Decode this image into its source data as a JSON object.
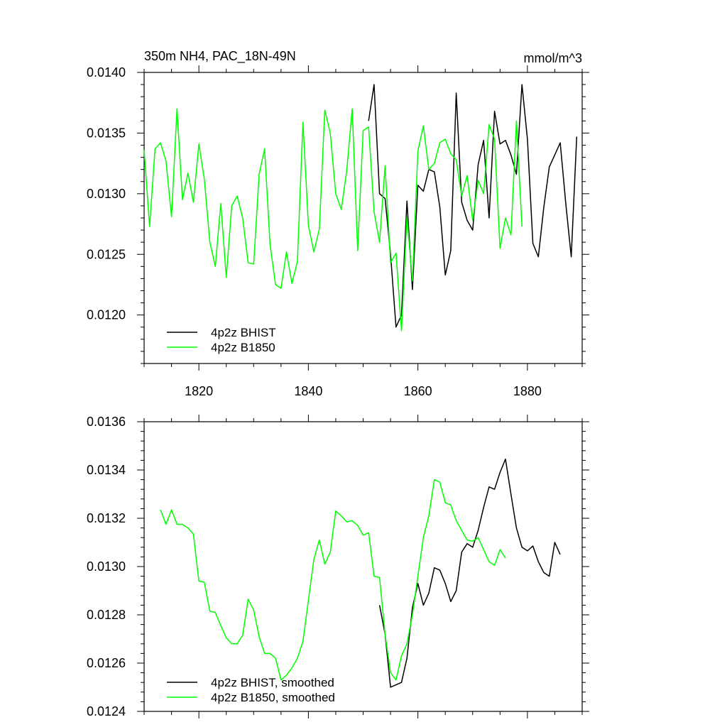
{
  "chart_data": [
    {
      "type": "line",
      "title": "350m NH4, PAC_18N-49N",
      "units": "mmol/m^3",
      "xlim": [
        1810,
        1890
      ],
      "ylim": [
        0.0116,
        0.014
      ],
      "x_ticks": [
        1820,
        1840,
        1860,
        1880
      ],
      "x_tick_labels": [
        "1820",
        "1840",
        "1860",
        "1880"
      ],
      "y_ticks": [
        0.012,
        0.0125,
        0.013,
        0.0135,
        0.014
      ],
      "y_tick_labels": [
        "0.0120",
        "0.0125",
        "0.0130",
        "0.0135",
        "0.0140"
      ],
      "legend_position": "bottom-left",
      "series": [
        {
          "name": "4p2z BHIST",
          "color": "#000000",
          "x": [
            1851,
            1852,
            1853,
            1854,
            1855,
            1856,
            1857,
            1858,
            1859,
            1860,
            1861,
            1862,
            1863,
            1864,
            1865,
            1866,
            1867,
            1868,
            1869,
            1870,
            1871,
            1872,
            1873,
            1874,
            1875,
            1876,
            1877,
            1878,
            1879,
            1880,
            1881,
            1882,
            1883,
            1884,
            1885,
            1886,
            1887,
            1888,
            1889
          ],
          "y": [
            0.0136,
            0.0139,
            0.013,
            0.01296,
            0.0125,
            0.0119,
            0.012,
            0.01294,
            0.01221,
            0.01307,
            0.01302,
            0.0132,
            0.01318,
            0.01289,
            0.01233,
            0.01253,
            0.01383,
            0.01293,
            0.01278,
            0.0127,
            0.01324,
            0.01344,
            0.0128,
            0.01368,
            0.01341,
            0.01344,
            0.01332,
            0.01316,
            0.0139,
            0.01345,
            0.01259,
            0.01248,
            0.01289,
            0.01322,
            0.01332,
            0.01342,
            0.01292,
            0.01248,
            0.01347
          ]
        },
        {
          "name": "4p2z B1850",
          "color": "#00ff00",
          "x": [
            1810,
            1811,
            1812,
            1813,
            1814,
            1815,
            1816,
            1817,
            1818,
            1819,
            1820,
            1821,
            1822,
            1823,
            1824,
            1825,
            1826,
            1827,
            1828,
            1829,
            1830,
            1831,
            1832,
            1833,
            1834,
            1835,
            1836,
            1837,
            1838,
            1839,
            1840,
            1841,
            1842,
            1843,
            1844,
            1845,
            1846,
            1847,
            1848,
            1849,
            1850,
            1851,
            1852,
            1853,
            1854,
            1855,
            1856,
            1857,
            1858,
            1859,
            1860,
            1861,
            1862,
            1863,
            1864,
            1865,
            1866,
            1867,
            1868,
            1869,
            1870,
            1871,
            1872,
            1873,
            1874,
            1875,
            1876,
            1877,
            1878,
            1879
          ],
          "y": [
            0.01336,
            0.01273,
            0.01337,
            0.01342,
            0.01327,
            0.01281,
            0.0137,
            0.01295,
            0.01317,
            0.01293,
            0.01341,
            0.01312,
            0.0126,
            0.0124,
            0.01292,
            0.01231,
            0.0129,
            0.01298,
            0.0128,
            0.01243,
            0.01242,
            0.01316,
            0.01337,
            0.01258,
            0.01225,
            0.01222,
            0.01252,
            0.01226,
            0.01244,
            0.01359,
            0.01274,
            0.01252,
            0.01271,
            0.01369,
            0.0135,
            0.013,
            0.01287,
            0.01319,
            0.0137,
            0.01253,
            0.01352,
            0.01355,
            0.01285,
            0.0126,
            0.01323,
            0.01243,
            0.01251,
            0.01187,
            0.01281,
            0.01228,
            0.01335,
            0.01356,
            0.0132,
            0.01325,
            0.01342,
            0.01345,
            0.01333,
            0.01328,
            0.01298,
            0.01315,
            0.01278,
            0.01311,
            0.013,
            0.01357,
            0.01345,
            0.01255,
            0.0128,
            0.01266,
            0.0136,
            0.01273
          ]
        }
      ]
    },
    {
      "type": "line",
      "xlim": [
        1810,
        1890
      ],
      "ylim": [
        0.0124,
        0.0136
      ],
      "x_ticks": [
        1820,
        1840,
        1860,
        1880
      ],
      "y_ticks": [
        0.0124,
        0.0126,
        0.0128,
        0.013,
        0.0132,
        0.0134,
        0.0136
      ],
      "y_tick_labels": [
        "0.0124",
        "0.0126",
        "0.0128",
        "0.0130",
        "0.0132",
        "0.0134",
        "0.0136"
      ],
      "legend_position": "bottom-left",
      "series": [
        {
          "name": "4p2z BHIST, smoothed",
          "color": "#000000",
          "x": [
            1853,
            1854,
            1855,
            1856,
            1857,
            1858,
            1859,
            1860,
            1861,
            1862,
            1863,
            1864,
            1865,
            1866,
            1867,
            1868,
            1869,
            1870,
            1871,
            1872,
            1873,
            1874,
            1875,
            1876,
            1877,
            1878,
            1879,
            1880,
            1881,
            1882,
            1883,
            1884,
            1885,
            1886
          ],
          "y": [
            0.01284,
            0.01272,
            0.0125,
            0.01251,
            0.01252,
            0.01262,
            0.01283,
            0.01293,
            0.01284,
            0.01289,
            0.012995,
            0.012985,
            0.01293,
            0.012855,
            0.0129,
            0.01306,
            0.013095,
            0.01308,
            0.01315,
            0.013245,
            0.01333,
            0.01332,
            0.01339,
            0.013445,
            0.0133,
            0.01316,
            0.01308,
            0.013065,
            0.013085,
            0.01302,
            0.012975,
            0.01296,
            0.0131,
            0.01305
          ]
        },
        {
          "name": "4p2z B1850, smoothed",
          "color": "#00ff00",
          "x": [
            1813,
            1814,
            1815,
            1816,
            1817,
            1818,
            1819,
            1820,
            1821,
            1822,
            1823,
            1824,
            1825,
            1826,
            1827,
            1828,
            1829,
            1830,
            1831,
            1832,
            1833,
            1834,
            1835,
            1836,
            1837,
            1838,
            1839,
            1840,
            1841,
            1842,
            1843,
            1844,
            1845,
            1846,
            1847,
            1848,
            1849,
            1850,
            1851,
            1852,
            1853,
            1854,
            1855,
            1856,
            1857,
            1858,
            1859,
            1860,
            1861,
            1862,
            1863,
            1864,
            1865,
            1866,
            1867,
            1868,
            1869,
            1870,
            1871,
            1872,
            1873,
            1874,
            1875,
            1876
          ],
          "y": [
            0.013235,
            0.013175,
            0.013235,
            0.013175,
            0.013175,
            0.01316,
            0.013135,
            0.01294,
            0.012935,
            0.012815,
            0.01281,
            0.012755,
            0.012705,
            0.01268,
            0.01268,
            0.012715,
            0.012865,
            0.01282,
            0.01271,
            0.01264,
            0.01264,
            0.01262,
            0.01253,
            0.01255,
            0.01258,
            0.01262,
            0.01269,
            0.01286,
            0.01303,
            0.01311,
            0.01301,
            0.01306,
            0.01323,
            0.01321,
            0.013185,
            0.01319,
            0.01317,
            0.01313,
            0.01314,
            0.01296,
            0.012955,
            0.01272,
            0.01256,
            0.01253,
            0.01263,
            0.01268,
            0.0128,
            0.01296,
            0.01312,
            0.01321,
            0.01336,
            0.01335,
            0.013265,
            0.013255,
            0.01319,
            0.01315,
            0.01311,
            0.013105,
            0.01312,
            0.01307,
            0.01302,
            0.013005,
            0.01307,
            0.013035
          ]
        }
      ]
    }
  ]
}
